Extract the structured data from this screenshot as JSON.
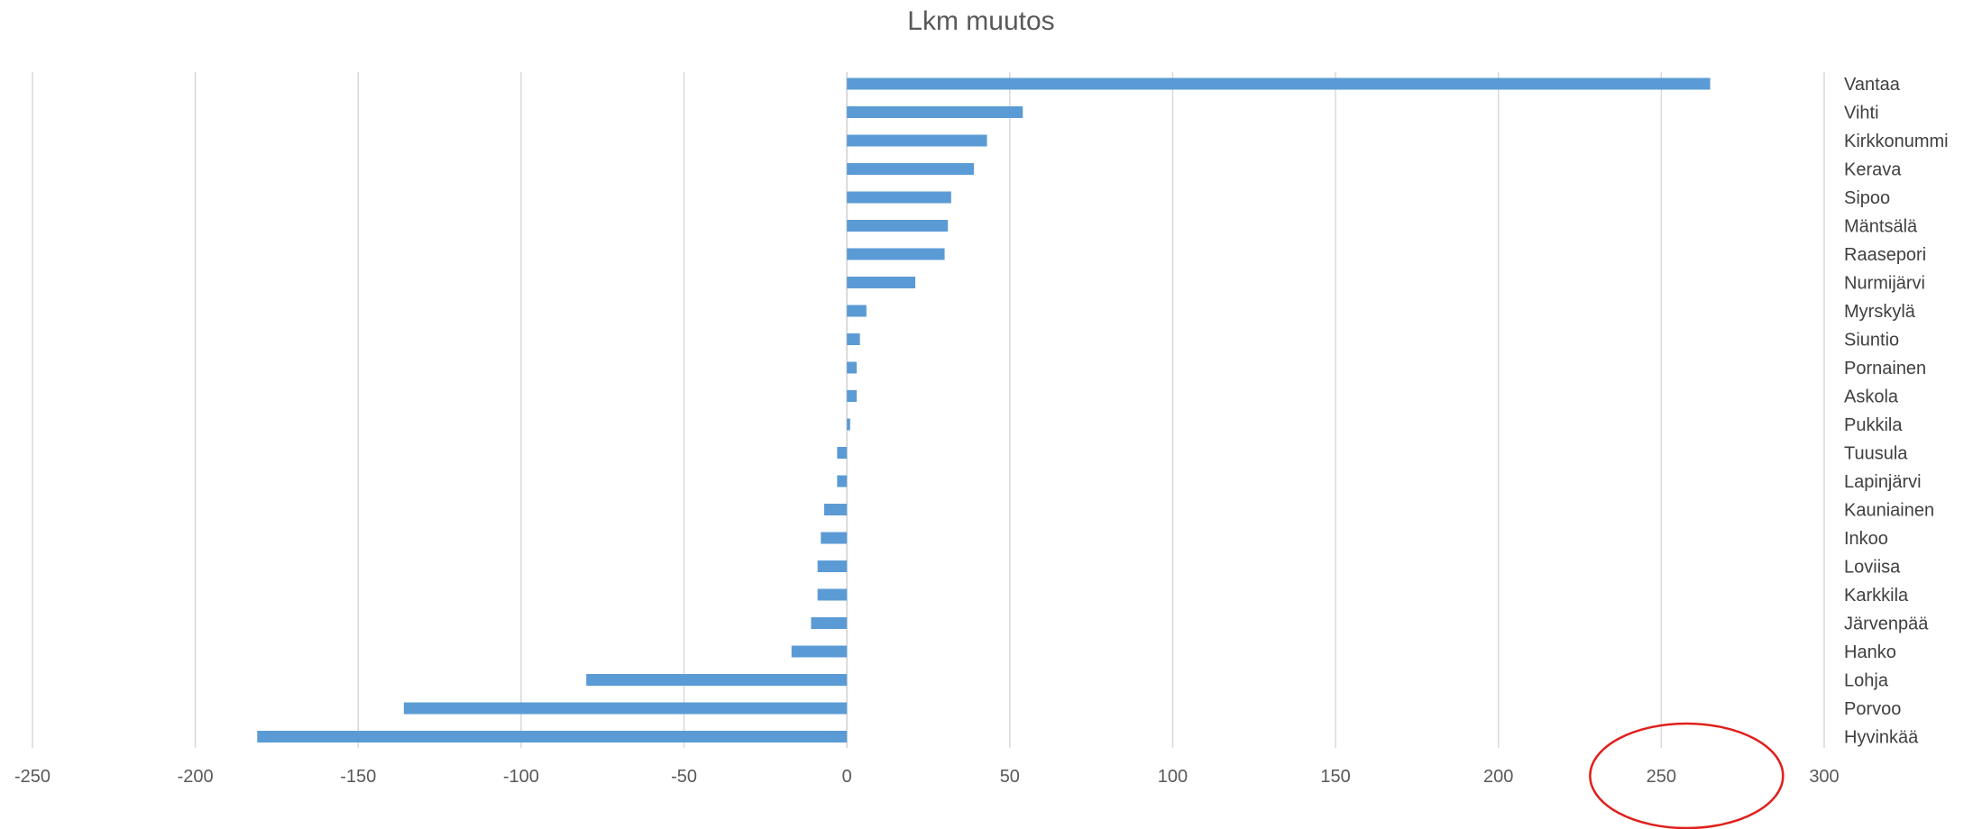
{
  "chart_data": {
    "type": "bar",
    "orientation": "horizontal",
    "title": "Lkm muutos",
    "categories": [
      "Vantaa",
      "Vihti",
      "Kirkkonummi",
      "Kerava",
      "Sipoo",
      "Mäntsälä",
      "Raasepori",
      "Nurmijärvi",
      "Myrskylä",
      "Siuntio",
      "Pornainen",
      "Askola",
      "Pukkila",
      "Tuusula",
      "Lapinjärvi",
      "Kauniainen",
      "Inkoo",
      "Loviisa",
      "Karkkila",
      "Järvenpää",
      "Hanko",
      "Lohja",
      "Porvoo",
      "Hyvinkää"
    ],
    "values": [
      265,
      54,
      43,
      39,
      32,
      31,
      30,
      21,
      6,
      4,
      3,
      3,
      1,
      -3,
      -3,
      -7,
      -8,
      -9,
      -9,
      -11,
      -17,
      -80,
      -136,
      -181
    ],
    "xlim": [
      -250,
      300
    ],
    "xticks": [
      -250,
      -200,
      -150,
      -100,
      -50,
      0,
      50,
      100,
      150,
      200,
      250,
      300
    ],
    "xtick_labels": [
      "-250",
      "-200",
      "-150",
      "-100",
      "-50",
      "0",
      "50",
      "100",
      "150",
      "200",
      "250",
      "300"
    ],
    "grid": true,
    "colors": {
      "bar": "#5B9BD5",
      "grid": "#D9D9D9",
      "annotation": "#E0201C"
    },
    "annotations": [
      {
        "shape": "ellipse",
        "around": "250"
      }
    ]
  }
}
